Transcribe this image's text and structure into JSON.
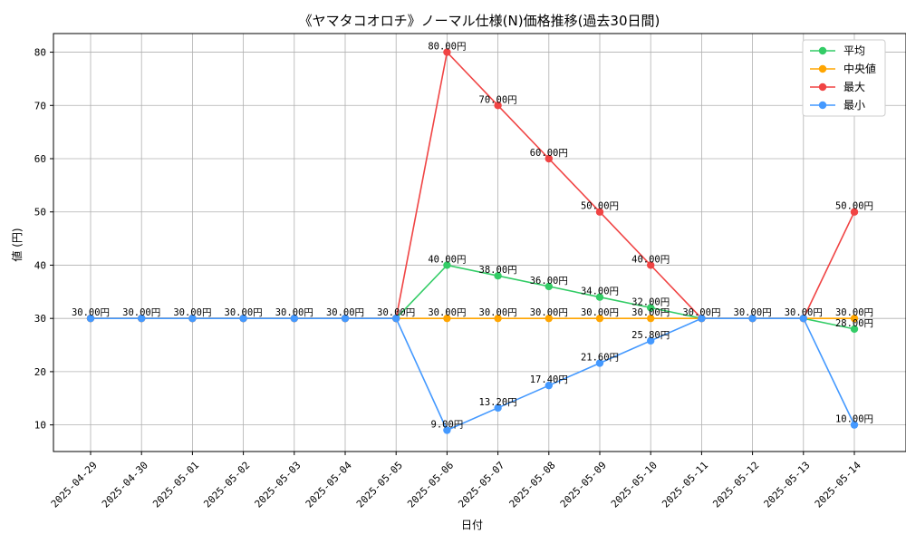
{
  "chart_data": {
    "type": "line",
    "title": "《ヤマタコオロチ》ノーマル仕様(N)価格推移(過去30日間)",
    "xlabel": "日付",
    "ylabel": "値 (円)",
    "ylim": [
      5,
      83.5
    ],
    "yticks": [
      10,
      20,
      30,
      40,
      50,
      60,
      70,
      80
    ],
    "grid": true,
    "legend_position": "top-right",
    "value_suffix": "円",
    "categories": [
      "2025-04-29",
      "2025-04-30",
      "2025-05-01",
      "2025-05-02",
      "2025-05-03",
      "2025-05-04",
      "2025-05-05",
      "2025-05-06",
      "2025-05-07",
      "2025-05-08",
      "2025-05-09",
      "2025-05-10",
      "2025-05-11",
      "2025-05-12",
      "2025-05-13",
      "2025-05-14"
    ],
    "series": [
      {
        "name": "平均",
        "color": "#33cc66",
        "values": [
          30,
          30,
          30,
          30,
          30,
          30,
          30,
          40,
          38,
          36,
          34,
          32,
          30,
          30,
          30,
          28
        ],
        "labels": [
          null,
          null,
          null,
          null,
          null,
          null,
          null,
          "40.00円",
          "38.00円",
          "36.00円",
          "34.00円",
          "32.00円",
          null,
          null,
          null,
          "28.00円"
        ]
      },
      {
        "name": "中央値",
        "color": "#ffa500",
        "values": [
          30,
          30,
          30,
          30,
          30,
          30,
          30,
          30,
          30,
          30,
          30,
          30,
          30,
          30,
          30,
          30
        ],
        "labels": [
          null,
          null,
          null,
          null,
          null,
          null,
          null,
          "30.00円",
          "30.00円",
          "30.00円",
          "30.00円",
          "30.00円",
          null,
          null,
          null,
          "30.00円"
        ]
      },
      {
        "name": "最大",
        "color": "#f04444",
        "values": [
          30,
          30,
          30,
          30,
          30,
          30,
          30,
          80,
          70,
          60,
          50,
          40,
          30,
          30,
          30,
          50
        ],
        "labels": [
          null,
          null,
          null,
          null,
          null,
          null,
          null,
          "80.00円",
          "70.00円",
          "60.00円",
          "50.00円",
          "40.00円",
          null,
          null,
          null,
          "50.00円"
        ]
      },
      {
        "name": "最小",
        "color": "#4499ff",
        "values": [
          30,
          30,
          30,
          30,
          30,
          30,
          30,
          9,
          13.2,
          17.4,
          21.6,
          25.8,
          30,
          30,
          30,
          10
        ],
        "labels": [
          "30.00円",
          "30.00円",
          "30.00円",
          "30.00円",
          "30.00円",
          "30.00円",
          "30.00円",
          "9.00円",
          "13.20円",
          "17.40円",
          "21.60円",
          "25.80円",
          "30.00円",
          "30.00円",
          "30.00円",
          "10.00円"
        ]
      }
    ]
  }
}
